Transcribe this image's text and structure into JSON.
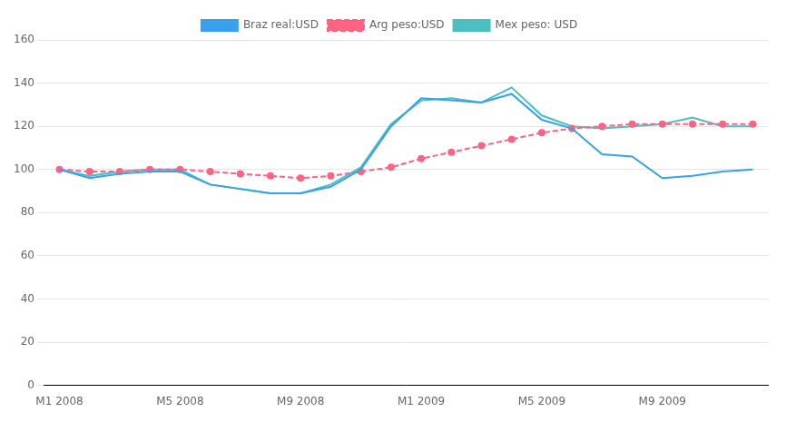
{
  "chart_data": {
    "type": "line",
    "categories": [
      "M1 2008",
      null,
      null,
      null,
      "M5 2008",
      null,
      null,
      null,
      "M9 2008",
      null,
      null,
      null,
      "M1 2009",
      null,
      null,
      null,
      "M5 2009",
      null,
      null,
      null,
      "M9 2009",
      null,
      null,
      null
    ],
    "series": [
      {
        "name": "Braz real:USD",
        "line_style": "solid",
        "marker": "none",
        "values": [
          100,
          96,
          98,
          99,
          99,
          93,
          91,
          89,
          89,
          92,
          100,
          120,
          133,
          132,
          131,
          135,
          123,
          119,
          107,
          106,
          96,
          97,
          99,
          100
        ]
      },
      {
        "name": "Arg peso:USD",
        "line_style": "dashed",
        "marker": "circle",
        "values": [
          100,
          99,
          99,
          100,
          100,
          99,
          98,
          97,
          96,
          97,
          99,
          101,
          105,
          108,
          111,
          114,
          117,
          119,
          120,
          121,
          121,
          121,
          121,
          121
        ]
      },
      {
        "name": "Mex peso: USD",
        "line_style": "solid",
        "marker": "none",
        "values": [
          100,
          97,
          99,
          100,
          100,
          93,
          91,
          89,
          89,
          93,
          101,
          121,
          132,
          133,
          131,
          138,
          125,
          120,
          119,
          120,
          121,
          124,
          120,
          120
        ]
      }
    ],
    "ylim": [
      0,
      160
    ],
    "yticks": [
      0,
      20,
      40,
      60,
      80,
      100,
      120,
      140,
      160
    ],
    "grid": true,
    "legend": "top"
  }
}
